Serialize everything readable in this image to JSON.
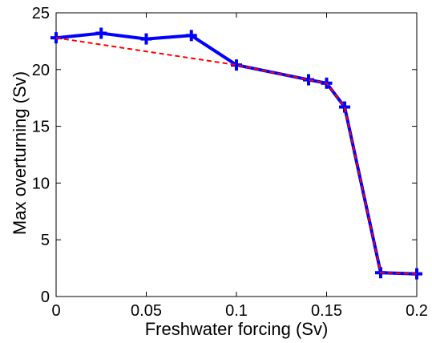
{
  "chart_data": {
    "type": "line",
    "title": "",
    "xlabel": "Freshwater forcing (Sv)",
    "ylabel": "Max overturning (Sv)",
    "xlim": [
      0,
      0.2
    ],
    "ylim": [
      0,
      25
    ],
    "xticks": [
      0,
      0.05,
      0.1,
      0.15,
      0.2
    ],
    "xtick_labels": [
      "0",
      "0.05",
      "0.1",
      "0.15",
      "0.2"
    ],
    "yticks": [
      0,
      5,
      10,
      15,
      20,
      25
    ],
    "ytick_labels": [
      "0",
      "5",
      "10",
      "15",
      "20",
      "25"
    ],
    "grid": false,
    "legend": "none",
    "series": [
      {
        "style": "solid-with-plus-markers",
        "color": "#0000ff",
        "x": [
          0,
          0.025,
          0.05,
          0.075,
          0.1,
          0.14,
          0.15,
          0.16,
          0.18,
          0.2
        ],
        "y": [
          22.8,
          23.2,
          22.7,
          23.0,
          20.4,
          19.1,
          18.8,
          16.7,
          2.1,
          2.0
        ]
      },
      {
        "style": "dashed",
        "color": "#ff0000",
        "x": [
          0,
          0.1,
          0.14,
          0.15,
          0.16,
          0.18,
          0.2
        ],
        "y": [
          22.8,
          20.4,
          19.1,
          18.8,
          16.7,
          2.1,
          2.0
        ]
      }
    ]
  }
}
